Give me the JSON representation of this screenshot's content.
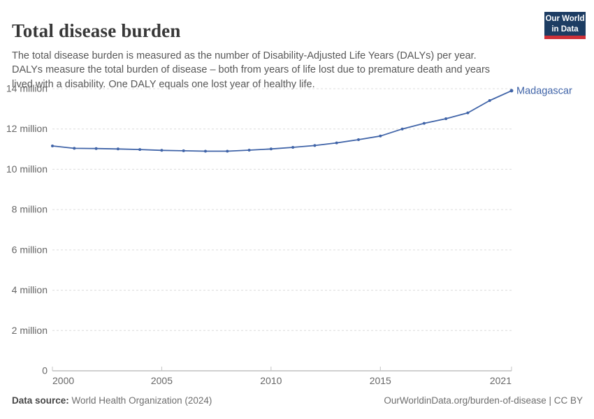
{
  "header": {
    "title": "Total disease burden",
    "subtitle": "The total disease burden is measured as the number of Disability-Adjusted Life Years (DALYs) per year. DALYs measure the total burden of disease – both from years of life lost due to premature death and years lived with a disability. One DALY equals one lost year of healthy life."
  },
  "logo": {
    "line1": "Our World",
    "line2": "in Data",
    "bg_color": "#1d3d63",
    "bar_color": "#cf3138"
  },
  "chart_data": {
    "type": "line",
    "title": "Total disease burden",
    "unit": "million DALYs",
    "xlim": [
      2000,
      2021
    ],
    "ylim_millions": [
      0,
      14
    ],
    "grid": "horizontal dashed",
    "legend_position": "end-of-line label",
    "line_color": "#4064a8",
    "grid_color": "#dcdcdc",
    "axis_color": "#a1a1a1",
    "tick_color": "#c4c4c4",
    "label_color": "#666666",
    "zero_label": "0",
    "yticks": [
      {
        "value": 2,
        "label": "2 million"
      },
      {
        "value": 4,
        "label": "4 million"
      },
      {
        "value": 6,
        "label": "6 million"
      },
      {
        "value": 8,
        "label": "8 million"
      },
      {
        "value": 10,
        "label": "10 million"
      },
      {
        "value": 12,
        "label": "12 million"
      },
      {
        "value": 14,
        "label": "14 million"
      }
    ],
    "xticks": [
      {
        "year": 2000,
        "label": "2000",
        "anchor": "start"
      },
      {
        "year": 2005,
        "label": "2005",
        "anchor": "middle"
      },
      {
        "year": 2010,
        "label": "2010",
        "anchor": "middle"
      },
      {
        "year": 2015,
        "label": "2015",
        "anchor": "middle"
      },
      {
        "year": 2021,
        "label": "2021",
        "anchor": "end"
      }
    ],
    "series": [
      {
        "name": "Madagascar",
        "years": [
          2000,
          2001,
          2002,
          2003,
          2004,
          2005,
          2006,
          2007,
          2008,
          2009,
          2010,
          2011,
          2012,
          2013,
          2014,
          2015,
          2016,
          2017,
          2018,
          2019,
          2020,
          2021
        ],
        "values_millions": [
          11.16,
          11.04,
          11.03,
          11.01,
          10.98,
          10.94,
          10.92,
          10.9,
          10.9,
          10.95,
          11.01,
          11.09,
          11.18,
          11.31,
          11.47,
          11.65,
          12.0,
          12.28,
          12.51,
          12.8,
          13.41,
          13.9
        ]
      }
    ]
  },
  "footer": {
    "source_label": "Data source:",
    "source_text": " World Health Organization (2024)",
    "link_text": "OurWorldinData.org/burden-of-disease | CC BY"
  }
}
